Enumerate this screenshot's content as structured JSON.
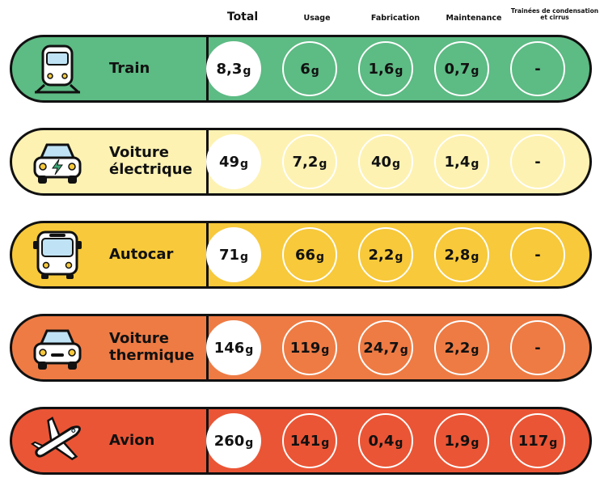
{
  "chart_data": {
    "type": "table",
    "columns": [
      "Total",
      "Usage",
      "Fabrication",
      "Maintenance",
      "Trainées de condensation et cirrus"
    ],
    "unit": "g",
    "rows": [
      {
        "label": "Train",
        "icon": "train-icon",
        "color": "#5dbb84",
        "values": [
          "8,3",
          "6",
          "1,6",
          "0,7",
          "-"
        ]
      },
      {
        "label": "Voiture\nélectrique",
        "icon": "electric-car-icon",
        "color": "#fdf2b2",
        "values": [
          "49",
          "7,2",
          "40",
          "1,4",
          "-"
        ]
      },
      {
        "label": "Autocar",
        "icon": "bus-icon",
        "color": "#f7c93b",
        "values": [
          "71",
          "66",
          "2,2",
          "2,8",
          "-"
        ]
      },
      {
        "label": "Voiture\nthermique",
        "icon": "car-icon",
        "color": "#ee7b44",
        "values": [
          "146",
          "119",
          "24,7",
          "2,2",
          "-"
        ]
      },
      {
        "label": "Avion",
        "icon": "plane-icon",
        "color": "#ea5535",
        "values": [
          "260",
          "141",
          "0,4",
          "1,9",
          "117"
        ]
      }
    ]
  }
}
